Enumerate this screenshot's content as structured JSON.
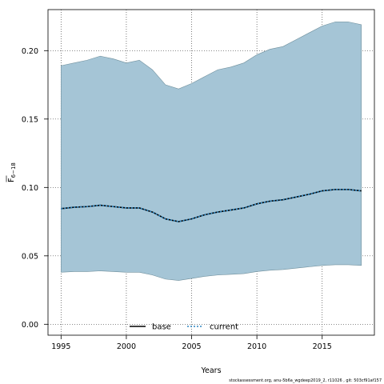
{
  "chart_data": {
    "type": "line",
    "title": "",
    "xlabel": "Years",
    "ylabel_main": "F",
    "ylabel_sub": "6−18",
    "xlim": [
      1994.0,
      2019.0
    ],
    "ylim": [
      -0.008,
      0.23
    ],
    "xticks": [
      1995,
      2000,
      2005,
      2010,
      2015
    ],
    "xtick_labels": [
      "1995",
      "2000",
      "2005",
      "2010",
      "2015"
    ],
    "yticks": [
      0.0,
      0.05,
      0.1,
      0.15,
      0.2
    ],
    "ytick_labels": [
      "0.00",
      "0.05",
      "0.10",
      "0.15",
      "0.20"
    ],
    "grid": true,
    "legend_position": "bottom",
    "x": [
      1995,
      1996,
      1997,
      1998,
      1999,
      2000,
      2001,
      2002,
      2003,
      2004,
      2005,
      2006,
      2007,
      2008,
      2009,
      2010,
      2011,
      2012,
      2013,
      2014,
      2015,
      2016,
      2017,
      2018
    ],
    "band": {
      "upper": [
        0.189,
        0.191,
        0.193,
        0.196,
        0.194,
        0.191,
        0.193,
        0.186,
        0.175,
        0.172,
        0.176,
        0.181,
        0.186,
        0.188,
        0.191,
        0.197,
        0.201,
        0.203,
        0.208,
        0.213,
        0.218,
        0.221,
        0.221,
        0.219
      ],
      "lower": [
        0.038,
        0.0385,
        0.0385,
        0.039,
        0.0385,
        0.038,
        0.038,
        0.036,
        0.033,
        0.032,
        0.0335,
        0.035,
        0.036,
        0.0365,
        0.037,
        0.0385,
        0.0395,
        0.04,
        0.041,
        0.042,
        0.043,
        0.0435,
        0.0435,
        0.043
      ],
      "color": "#a5c5d6"
    },
    "series": [
      {
        "name": "base",
        "style": "solid",
        "color": "#000000",
        "values": [
          0.0845,
          0.0855,
          0.086,
          0.087,
          0.086,
          0.085,
          0.085,
          0.082,
          0.077,
          0.075,
          0.077,
          0.08,
          0.082,
          0.0835,
          0.085,
          0.088,
          0.09,
          0.091,
          0.093,
          0.095,
          0.0975,
          0.0985,
          0.0985,
          0.0975
        ]
      },
      {
        "name": "current",
        "style": "dotted",
        "color": "#2e86c1",
        "values": [
          0.0845,
          0.0855,
          0.086,
          0.087,
          0.086,
          0.085,
          0.085,
          0.082,
          0.077,
          0.075,
          0.077,
          0.08,
          0.082,
          0.0835,
          0.085,
          0.088,
          0.09,
          0.091,
          0.093,
          0.095,
          0.0975,
          0.0985,
          0.0985,
          0.0975
        ]
      }
    ]
  },
  "footer_text": "stockassessment.org, anu-5b6a_wgdeep2019_2, r11026 , git: 503cf91af157"
}
